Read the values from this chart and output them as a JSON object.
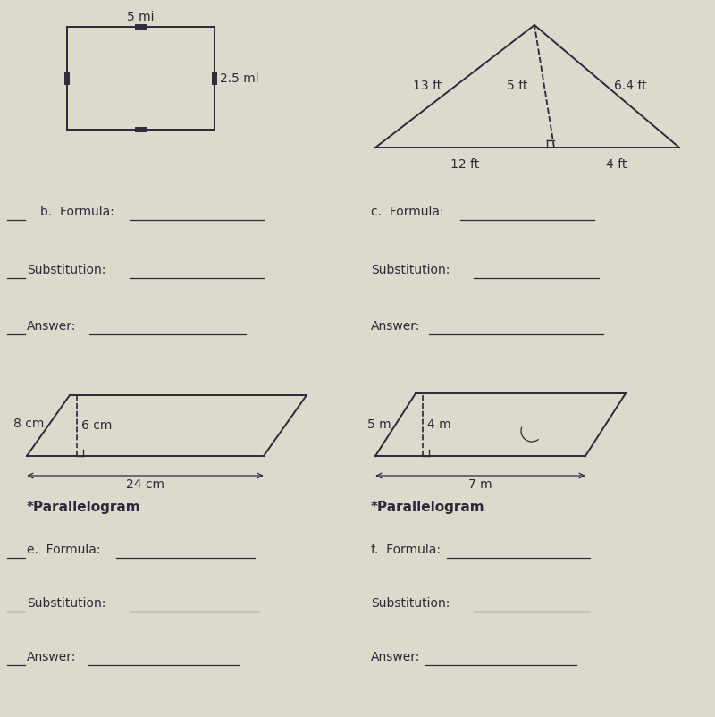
{
  "bg_color": "#ddd9cc",
  "text_color": "#2a2a3a",
  "rect_label_top": "5 mi",
  "rect_label_side": "2.5 ml",
  "tri_labels": [
    "13 ft",
    "5 ft",
    "6.4 ft",
    "12 ft",
    "4 ft"
  ],
  "para1_labels": [
    "8 cm",
    "6 cm",
    "24 cm"
  ],
  "para2_labels": [
    "5 m",
    "4 m",
    "7 m"
  ],
  "b_label": "b.  Formula:",
  "c_label": "c.  Formula:",
  "sub_label": "Substitution:",
  "ans_label": "Answer:",
  "para_label": "*Parallelogram",
  "e_label": "e.  Formula:",
  "f_label": "f.  Formula:"
}
